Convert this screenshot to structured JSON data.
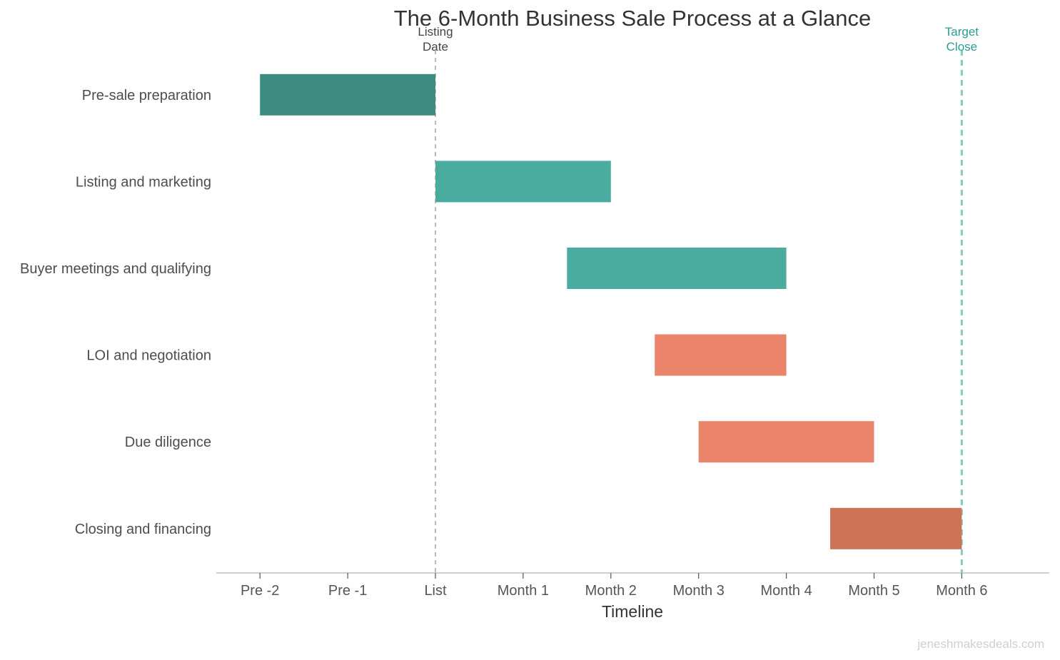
{
  "chart_data": {
    "type": "gantt",
    "title": "The 6-Month Business Sale Process at a Glance",
    "xlabel": "Timeline",
    "ylabel": "",
    "xlim": [
      -2.5,
      7
    ],
    "x_ticks": [
      {
        "value": -2,
        "label": "Pre -2"
      },
      {
        "value": -1,
        "label": "Pre -1"
      },
      {
        "value": 0,
        "label": "List"
      },
      {
        "value": 1,
        "label": "Month 1"
      },
      {
        "value": 2,
        "label": "Month 2"
      },
      {
        "value": 3,
        "label": "Month 3"
      },
      {
        "value": 4,
        "label": "Month 4"
      },
      {
        "value": 5,
        "label": "Month 5"
      },
      {
        "value": 6,
        "label": "Month 6"
      }
    ],
    "tasks": [
      {
        "name": "Pre-sale preparation",
        "start": -2,
        "end": 0,
        "color": "#3d8b80"
      },
      {
        "name": "Listing and marketing",
        "start": 0,
        "end": 2,
        "color": "#4aab9f"
      },
      {
        "name": "Buyer meetings and qualifying",
        "start": 1.5,
        "end": 4,
        "color": "#4aab9f"
      },
      {
        "name": "LOI and negotiation",
        "start": 2.5,
        "end": 4,
        "color": "#e9846a"
      },
      {
        "name": "Due diligence",
        "start": 3,
        "end": 5,
        "color": "#e9846a"
      },
      {
        "name": "Closing and financing",
        "start": 4.5,
        "end": 6,
        "color": "#ce7358"
      }
    ],
    "markers": [
      {
        "value": 0,
        "label_lines": [
          "Listing",
          "Date"
        ],
        "color": "#bbbbbb",
        "label_color": "#444444"
      },
      {
        "value": 6,
        "label_lines": [
          "Target",
          "Close"
        ],
        "color": "#7fcfc1",
        "label_color": "#2a9d8f"
      }
    ],
    "grid": false,
    "legend": "none"
  },
  "watermark": "jeneshmakesdeals.com"
}
